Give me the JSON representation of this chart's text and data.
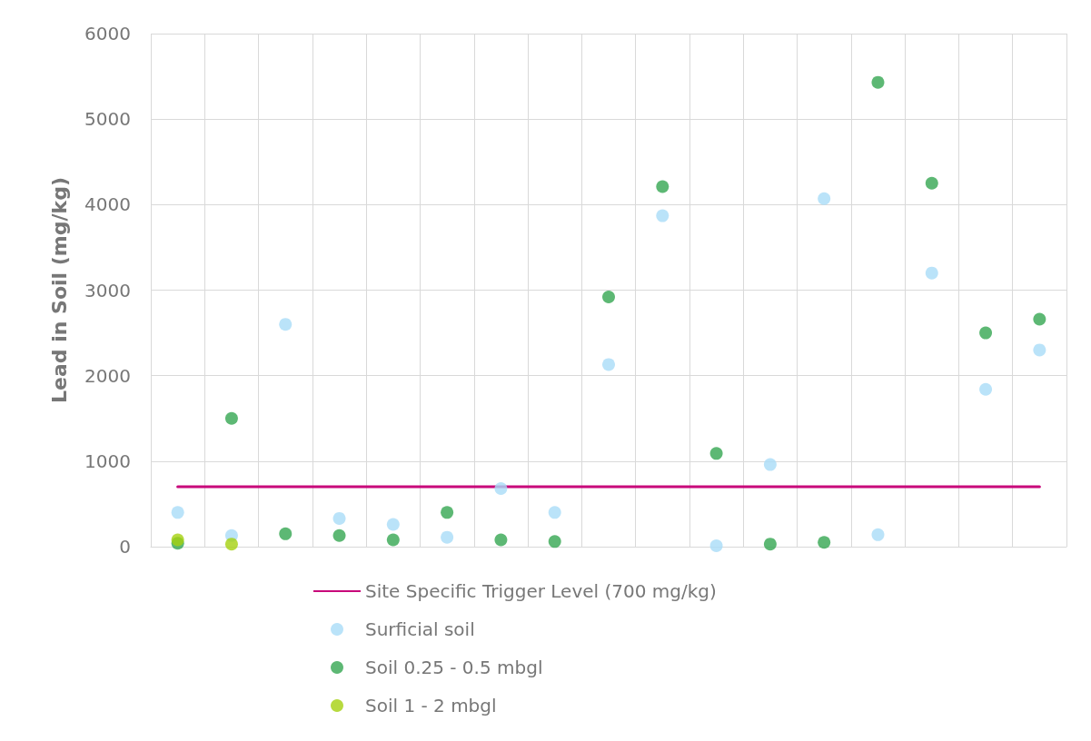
{
  "chart_data": {
    "type": "scatter",
    "ylabel": "Lead in Soil (mg/kg)",
    "categories": [
      null,
      null,
      null,
      null,
      null,
      null,
      null,
      null,
      null,
      null,
      null,
      null,
      null,
      null,
      null,
      null,
      null
    ],
    "series": [
      {
        "name": "Site Specific Trigger Level (700 mg/kg)",
        "type": "line",
        "color": "#c8077a",
        "marker": "none",
        "line_style": "solid",
        "values": [
          700,
          700,
          700,
          700,
          700,
          700,
          700,
          700,
          700,
          700,
          700,
          700,
          700,
          700,
          700,
          700,
          700
        ]
      },
      {
        "name": "Surficial soil",
        "color": "#a9dcf8",
        "values": [
          400,
          130,
          2600,
          330,
          260,
          110,
          680,
          400,
          2130,
          3870,
          10,
          960,
          4070,
          140,
          3200,
          1840,
          2300
        ]
      },
      {
        "name": "Soil 0.25 - 0.5 mbgl",
        "color": "#35a651",
        "values": [
          40,
          1500,
          150,
          130,
          80,
          400,
          80,
          60,
          2920,
          4210,
          1090,
          30,
          50,
          5430,
          4250,
          2500,
          2660
        ]
      },
      {
        "name": "Soil 1 - 2 mbgl",
        "color": "#a5d10f",
        "values": [
          80,
          30,
          null,
          null,
          null,
          null,
          null,
          null,
          null,
          null,
          null,
          null,
          null,
          null,
          null,
          null,
          null
        ]
      }
    ],
    "ylim": [
      0,
      6000
    ],
    "yticks": [
      0,
      1000,
      2000,
      3000,
      4000,
      5000,
      6000
    ],
    "grid": true,
    "legend": "bottom",
    "tick_labels": "y",
    "marker": "circle"
  }
}
